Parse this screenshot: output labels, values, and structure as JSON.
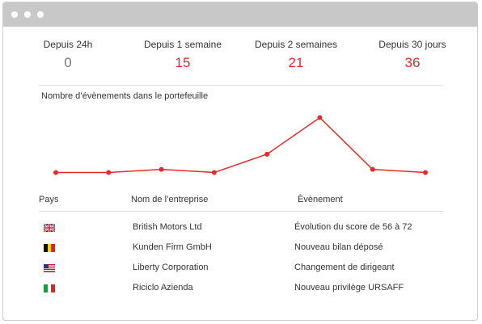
{
  "stats": [
    {
      "label": "Depuis 24h",
      "value": "0"
    },
    {
      "label": "Depuis 1 semaine",
      "value": "15"
    },
    {
      "label": "Depuis 2 semaines",
      "value": "21"
    },
    {
      "label": "Depuis 30 jours",
      "value": "36"
    }
  ],
  "chart": {
    "title": "Nombre d’évènements dans le portefeuille"
  },
  "chart_data": {
    "type": "line",
    "title": "Nombre d’évènements dans le portefeuille",
    "series": [
      {
        "values": [
          2,
          2,
          3,
          2,
          8,
          20,
          3,
          2
        ]
      }
    ],
    "ylim": [
      0,
      22
    ],
    "grid": false,
    "color": "#e52a2a"
  },
  "table": {
    "headers": {
      "country": "Pays",
      "company": "Nom de l’entreprise",
      "event": "Èvènement"
    },
    "rows": [
      {
        "flag": "uk-flag-icon",
        "company": "British Motors Ltd",
        "event": "Évolution du score de 56 à 72"
      },
      {
        "flag": "belgium-flag-icon",
        "company": "Kunden Firm GmbH",
        "event": "Nouveau bilan déposé"
      },
      {
        "flag": "usa-flag-icon",
        "company": "Liberty Corporation",
        "event": "Changement de dirigeant"
      },
      {
        "flag": "italy-flag-icon",
        "company": "Riciclo Azienda",
        "event": "Nouveau privilège URSAFF"
      }
    ]
  },
  "colors": {
    "accent": "#e52a2a",
    "titlebar": "#c8c8c8"
  }
}
